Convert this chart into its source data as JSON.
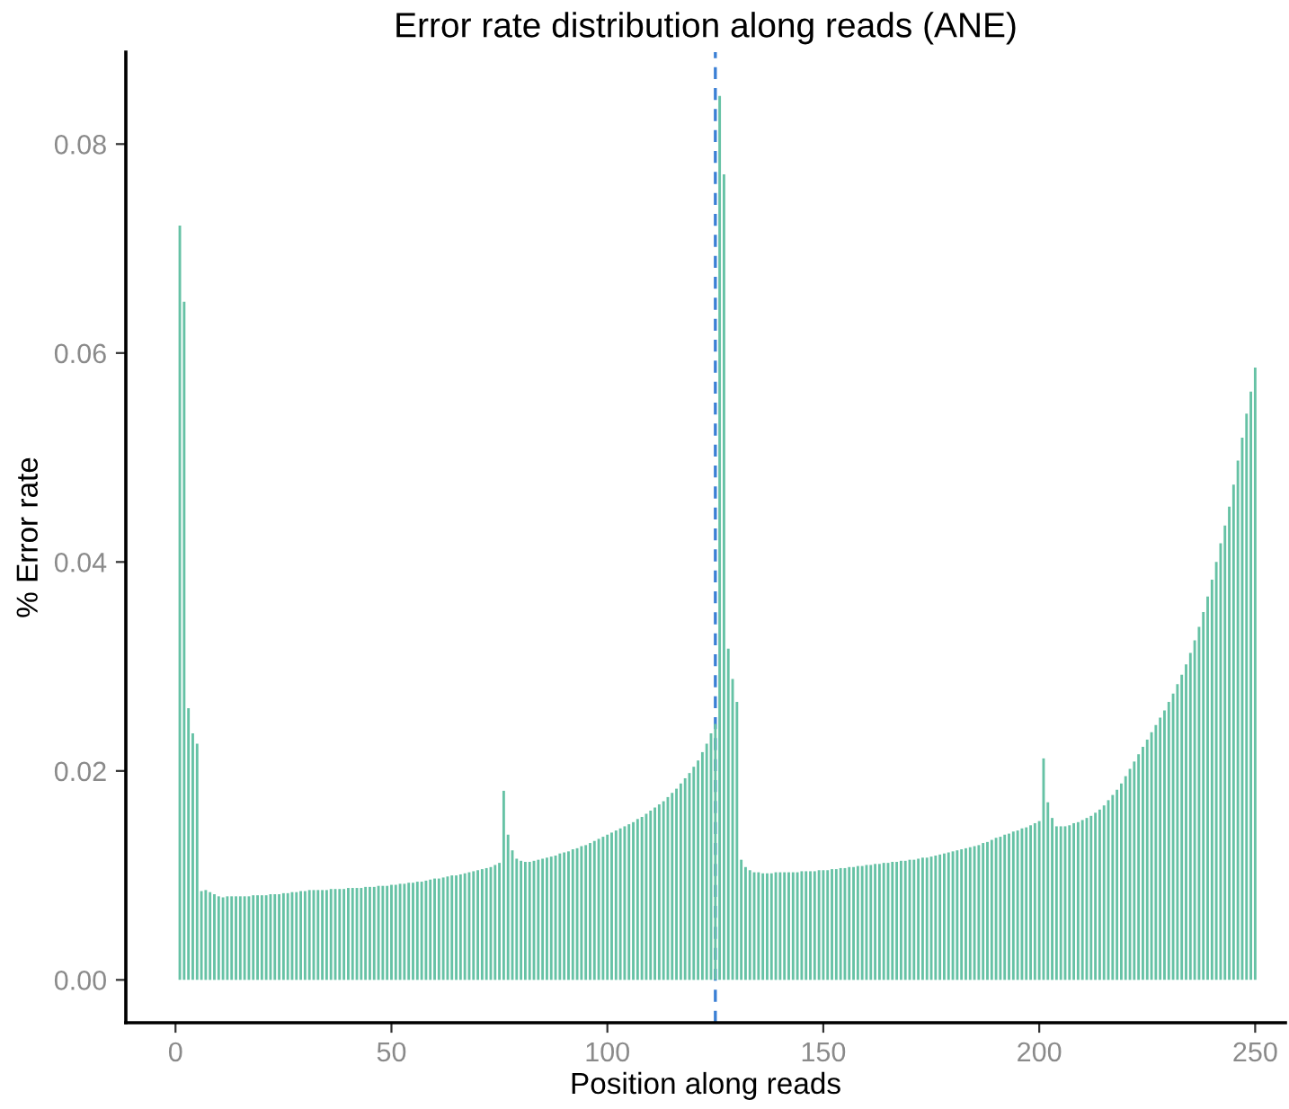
{
  "chart_data": {
    "type": "bar",
    "title": "Error rate distribution along reads (ANE)",
    "xlabel": "Position along reads",
    "ylabel": "% Error rate",
    "x": [
      1,
      2,
      3,
      4,
      5,
      6,
      7,
      8,
      9,
      10,
      11,
      12,
      13,
      14,
      15,
      16,
      17,
      18,
      19,
      20,
      21,
      22,
      23,
      24,
      25,
      26,
      27,
      28,
      29,
      30,
      31,
      32,
      33,
      34,
      35,
      36,
      37,
      38,
      39,
      40,
      41,
      42,
      43,
      44,
      45,
      46,
      47,
      48,
      49,
      50,
      51,
      52,
      53,
      54,
      55,
      56,
      57,
      58,
      59,
      60,
      61,
      62,
      63,
      64,
      65,
      66,
      67,
      68,
      69,
      70,
      71,
      72,
      73,
      74,
      75,
      76,
      77,
      78,
      79,
      80,
      81,
      82,
      83,
      84,
      85,
      86,
      87,
      88,
      89,
      90,
      91,
      92,
      93,
      94,
      95,
      96,
      97,
      98,
      99,
      100,
      101,
      102,
      103,
      104,
      105,
      106,
      107,
      108,
      109,
      110,
      111,
      112,
      113,
      114,
      115,
      116,
      117,
      118,
      119,
      120,
      121,
      122,
      123,
      124,
      125,
      126,
      127,
      128,
      129,
      130,
      131,
      132,
      133,
      134,
      135,
      136,
      137,
      138,
      139,
      140,
      141,
      142,
      143,
      144,
      145,
      146,
      147,
      148,
      149,
      150,
      151,
      152,
      153,
      154,
      155,
      156,
      157,
      158,
      159,
      160,
      161,
      162,
      163,
      164,
      165,
      166,
      167,
      168,
      169,
      170,
      171,
      172,
      173,
      174,
      175,
      176,
      177,
      178,
      179,
      180,
      181,
      182,
      183,
      184,
      185,
      186,
      187,
      188,
      189,
      190,
      191,
      192,
      193,
      194,
      195,
      196,
      197,
      198,
      199,
      200,
      201,
      202,
      203,
      204,
      205,
      206,
      207,
      208,
      209,
      210,
      211,
      212,
      213,
      214,
      215,
      216,
      217,
      218,
      219,
      220,
      221,
      222,
      223,
      224,
      225,
      226,
      227,
      228,
      229,
      230,
      231,
      232,
      233,
      234,
      235,
      236,
      237,
      238,
      239,
      240,
      241,
      242,
      243,
      244,
      245,
      246,
      247,
      248,
      249,
      250
    ],
    "values": [
      0.0722,
      0.0649,
      0.026,
      0.0236,
      0.0226,
      0.0085,
      0.0086,
      0.0084,
      0.0082,
      0.008,
      0.0079,
      0.008,
      0.008,
      0.008,
      0.008,
      0.008,
      0.008,
      0.0081,
      0.0081,
      0.0081,
      0.0081,
      0.0082,
      0.0082,
      0.0082,
      0.0083,
      0.0083,
      0.0084,
      0.0084,
      0.0085,
      0.0085,
      0.0086,
      0.0086,
      0.0086,
      0.0086,
      0.0086,
      0.0087,
      0.0087,
      0.0087,
      0.0087,
      0.0088,
      0.0088,
      0.0088,
      0.0088,
      0.0089,
      0.0089,
      0.0089,
      0.009,
      0.009,
      0.009,
      0.0091,
      0.0091,
      0.0092,
      0.0092,
      0.0093,
      0.0093,
      0.0094,
      0.0094,
      0.0095,
      0.0096,
      0.0097,
      0.0097,
      0.0098,
      0.0099,
      0.01,
      0.01,
      0.0101,
      0.0102,
      0.0103,
      0.0104,
      0.0105,
      0.0106,
      0.0107,
      0.0108,
      0.011,
      0.0112,
      0.0181,
      0.0139,
      0.0124,
      0.0116,
      0.0114,
      0.0113,
      0.0113,
      0.0114,
      0.0115,
      0.0116,
      0.0117,
      0.0118,
      0.0119,
      0.0121,
      0.0122,
      0.0123,
      0.0125,
      0.0126,
      0.0128,
      0.0129,
      0.0131,
      0.0133,
      0.0135,
      0.0137,
      0.0139,
      0.0141,
      0.0143,
      0.0145,
      0.0147,
      0.0149,
      0.0151,
      0.0154,
      0.0156,
      0.0159,
      0.0162,
      0.0165,
      0.0168,
      0.0171,
      0.0175,
      0.0179,
      0.0183,
      0.0188,
      0.0193,
      0.0198,
      0.0204,
      0.021,
      0.0218,
      0.0226,
      0.0236,
      0.0245,
      0.0846,
      0.0771,
      0.0317,
      0.0288,
      0.0266,
      0.0115,
      0.0108,
      0.0105,
      0.0103,
      0.0103,
      0.0102,
      0.0102,
      0.0102,
      0.0103,
      0.0103,
      0.0103,
      0.0103,
      0.0103,
      0.0103,
      0.0104,
      0.0104,
      0.0104,
      0.0104,
      0.0105,
      0.0105,
      0.0105,
      0.0106,
      0.0106,
      0.0107,
      0.0107,
      0.0108,
      0.0108,
      0.0109,
      0.0109,
      0.011,
      0.011,
      0.0111,
      0.0111,
      0.0112,
      0.0112,
      0.0113,
      0.0113,
      0.0114,
      0.0114,
      0.0115,
      0.0115,
      0.0116,
      0.0117,
      0.0117,
      0.0118,
      0.0119,
      0.012,
      0.0121,
      0.0122,
      0.0123,
      0.0124,
      0.0125,
      0.0126,
      0.0127,
      0.0128,
      0.0129,
      0.0131,
      0.0132,
      0.0134,
      0.0136,
      0.0137,
      0.0139,
      0.014,
      0.0142,
      0.0143,
      0.0145,
      0.0146,
      0.0148,
      0.015,
      0.0152,
      0.0212,
      0.017,
      0.0155,
      0.0147,
      0.0147,
      0.0147,
      0.0148,
      0.015,
      0.0151,
      0.0153,
      0.0155,
      0.0157,
      0.016,
      0.0163,
      0.0167,
      0.0172,
      0.0177,
      0.0182,
      0.0188,
      0.0195,
      0.0202,
      0.0209,
      0.0216,
      0.0223,
      0.023,
      0.0237,
      0.0244,
      0.0251,
      0.0258,
      0.0266,
      0.0274,
      0.0283,
      0.0292,
      0.0302,
      0.0313,
      0.0325,
      0.0338,
      0.0352,
      0.0367,
      0.0383,
      0.04,
      0.0418,
      0.0435,
      0.0453,
      0.0474,
      0.0497,
      0.0519,
      0.0542,
      0.0563,
      0.0586
    ],
    "color": "#66c2a5",
    "xlim": [
      -11.5,
      257
    ],
    "xticks": [
      0,
      50,
      100,
      150,
      200,
      250
    ],
    "ylim": [
      -0.0041,
      0.0888
    ],
    "yticks": [
      {
        "value": 0,
        "label": "0.00"
      },
      {
        "value": 0.02,
        "label": "0.02"
      },
      {
        "value": 0.04,
        "label": "0.04"
      },
      {
        "value": 0.06,
        "label": "0.06"
      },
      {
        "value": 0.08,
        "label": "0.08"
      }
    ],
    "ref_lines": [
      {
        "axis": "x",
        "value": 125,
        "color": "#3a7fd5",
        "line_style": "dashed"
      }
    ],
    "grid": false,
    "legend": false
  }
}
